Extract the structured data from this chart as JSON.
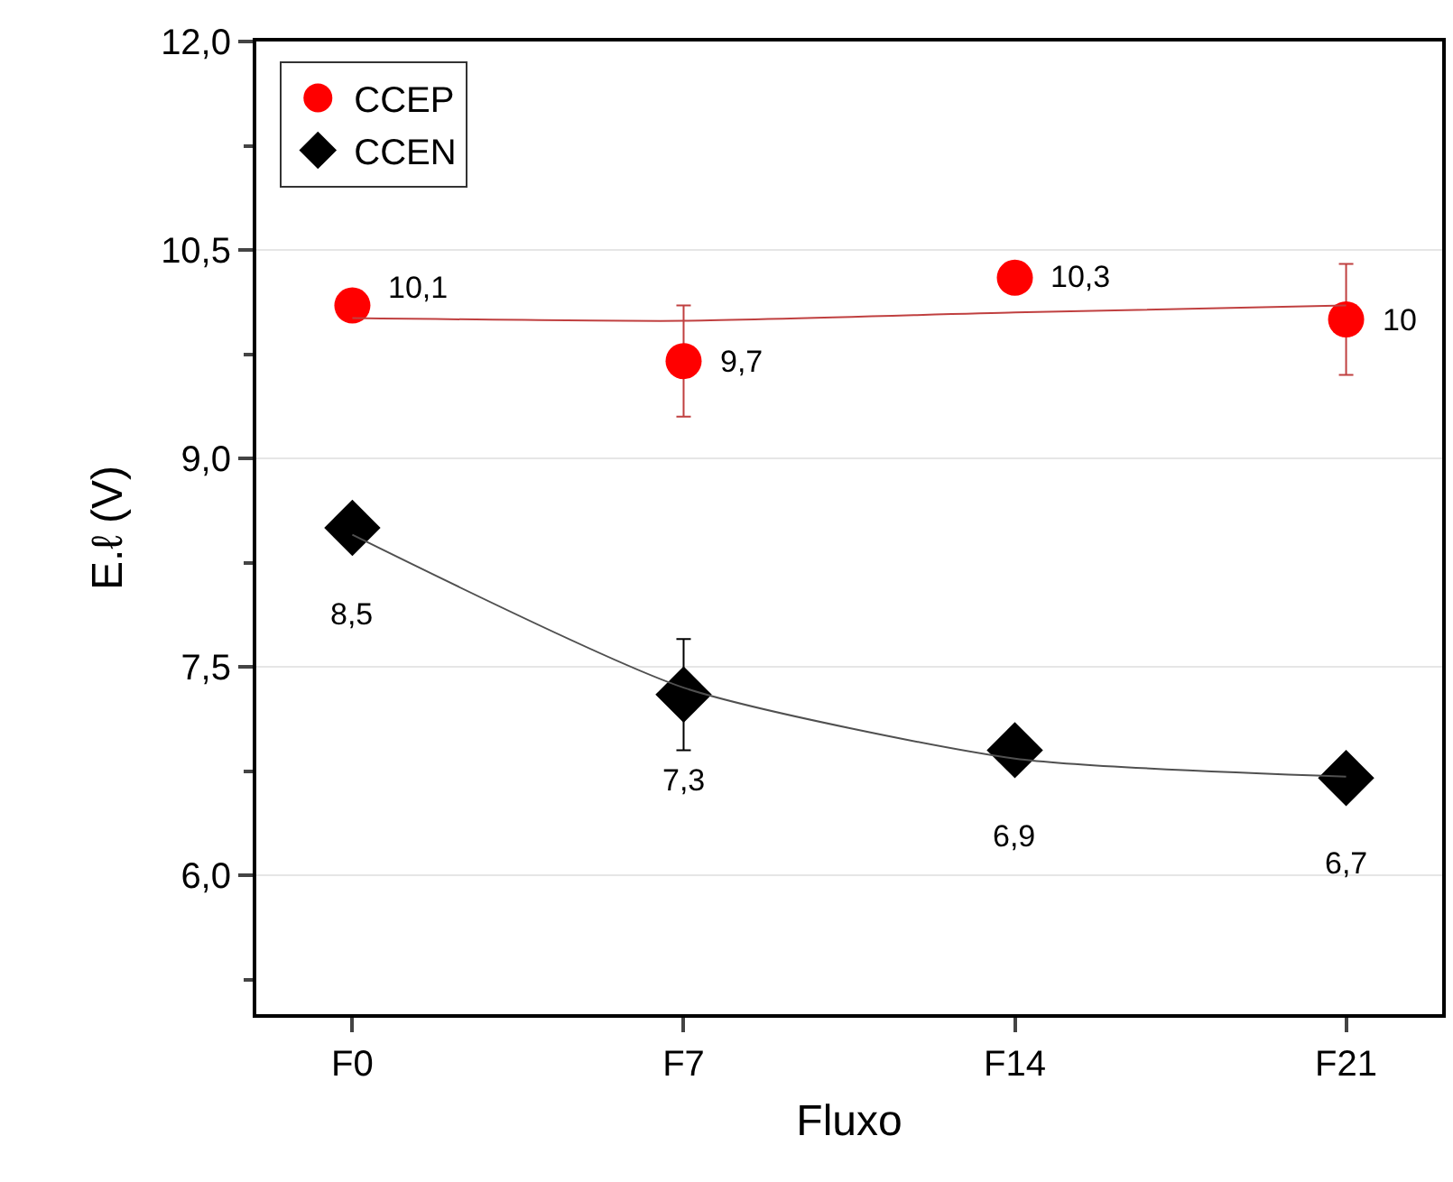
{
  "chart_data": {
    "type": "scatter",
    "xlabel": "Fluxo",
    "ylabel": "E.ℓ (V)",
    "categories": [
      "F0",
      "F7",
      "F14",
      "F21"
    ],
    "ylim": [
      5,
      12
    ],
    "yticks": [
      {
        "value": 6,
        "label": "6,0"
      },
      {
        "value": 7.5,
        "label": "7,5"
      },
      {
        "value": 9,
        "label": "9,0"
      },
      {
        "value": 10.5,
        "label": "10,5"
      },
      {
        "value": 12,
        "label": "12,0"
      }
    ],
    "grid": "y",
    "legend": "top left",
    "series": [
      {
        "name": "CCEP",
        "color": "#ff0000",
        "marker": "circle",
        "values": [
          10.1,
          9.7,
          10.3,
          10
        ],
        "errors": [
          null,
          0.4,
          null,
          0.4
        ],
        "value_labels": [
          "10,1",
          "9,7",
          "10,3",
          "10"
        ]
      },
      {
        "name": "CCEN",
        "color": "#000000",
        "marker": "diamond",
        "values": [
          8.5,
          7.3,
          6.9,
          6.7
        ],
        "errors": [
          null,
          0.4,
          null,
          null
        ],
        "value_labels": [
          "8,5",
          "7,3",
          "6,9",
          "6,7"
        ]
      },
      {
        "type": "line",
        "color": "#c04040",
        "values": [
          10.01,
          9.99,
          10.05,
          10.1
        ]
      },
      {
        "type": "line",
        "color": "#505050",
        "values": [
          8.45,
          7.35,
          6.84,
          6.71
        ]
      }
    ]
  }
}
